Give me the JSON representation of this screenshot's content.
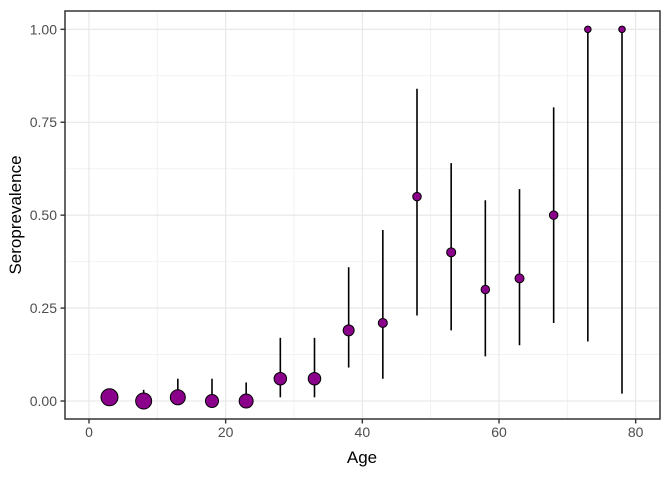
{
  "chart_data": {
    "type": "scatter",
    "mark": "pointrange",
    "title": "",
    "xlabel": "Age",
    "ylabel": "Seroprevalence",
    "xlim": [
      -3.51,
      83.56
    ],
    "ylim": [
      -0.0484,
      1.0493
    ],
    "grid": "major+minor",
    "legend": "none",
    "x_ticks": [
      {
        "value": 0,
        "label": "0"
      },
      {
        "value": 20,
        "label": "20"
      },
      {
        "value": 40,
        "label": "40"
      },
      {
        "value": 60,
        "label": "60"
      },
      {
        "value": 80,
        "label": "80"
      }
    ],
    "y_ticks": [
      {
        "value": 0.0,
        "label": "0.00"
      },
      {
        "value": 0.25,
        "label": "0.25"
      },
      {
        "value": 0.5,
        "label": "0.50"
      },
      {
        "value": 0.75,
        "label": "0.75"
      },
      {
        "value": 1.0,
        "label": "1.00"
      }
    ],
    "x_minor_ticks": [
      10,
      30,
      50,
      70
    ],
    "y_minor_ticks": [
      0.125,
      0.375,
      0.625,
      0.875
    ],
    "series": [
      {
        "name": "seroprevalence-by-age",
        "marker_color": "#8B008B",
        "marker_outline": "#000000",
        "points": [
          {
            "age": 3,
            "value": 0.01,
            "ci_low": 0.0,
            "ci_high": 0.03,
            "diameter": 17
          },
          {
            "age": 8,
            "value": 0.0,
            "ci_low": 0.0,
            "ci_high": 0.03,
            "diameter": 16
          },
          {
            "age": 13,
            "value": 0.01,
            "ci_low": 0.0,
            "ci_high": 0.06,
            "diameter": 15
          },
          {
            "age": 18,
            "value": 0.0,
            "ci_low": 0.0,
            "ci_high": 0.06,
            "diameter": 13
          },
          {
            "age": 23,
            "value": 0.0,
            "ci_low": 0.0,
            "ci_high": 0.05,
            "diameter": 14
          },
          {
            "age": 28,
            "value": 0.06,
            "ci_low": 0.01,
            "ci_high": 0.17,
            "diameter": 12.5
          },
          {
            "age": 33,
            "value": 0.06,
            "ci_low": 0.01,
            "ci_high": 0.17,
            "diameter": 12.5
          },
          {
            "age": 38,
            "value": 0.19,
            "ci_low": 0.09,
            "ci_high": 0.36,
            "diameter": 11
          },
          {
            "age": 43,
            "value": 0.21,
            "ci_low": 0.06,
            "ci_high": 0.46,
            "diameter": 9
          },
          {
            "age": 48,
            "value": 0.55,
            "ci_low": 0.23,
            "ci_high": 0.84,
            "diameter": 8.5
          },
          {
            "age": 53,
            "value": 0.4,
            "ci_low": 0.19,
            "ci_high": 0.64,
            "diameter": 9
          },
          {
            "age": 58,
            "value": 0.3,
            "ci_low": 0.12,
            "ci_high": 0.54,
            "diameter": 8.5
          },
          {
            "age": 63,
            "value": 0.33,
            "ci_low": 0.15,
            "ci_high": 0.57,
            "diameter": 9
          },
          {
            "age": 68,
            "value": 0.5,
            "ci_low": 0.21,
            "ci_high": 0.79,
            "diameter": 8.5
          },
          {
            "age": 73,
            "value": 1.0,
            "ci_low": 0.16,
            "ci_high": 1.0,
            "diameter": 6.5
          },
          {
            "age": 78,
            "value": 1.0,
            "ci_low": 0.02,
            "ci_high": 1.0,
            "diameter": 6.5
          }
        ]
      }
    ]
  },
  "colors": {
    "panel_background": "#FFFFFF",
    "panel_border": "#333333",
    "grid_major": "#E6E6E6",
    "grid_minor": "#F2F2F2",
    "tick_mark": "#333333",
    "tick_label": "#4D4D4D",
    "axis_title": "#000000",
    "error_bar": "#000000"
  }
}
